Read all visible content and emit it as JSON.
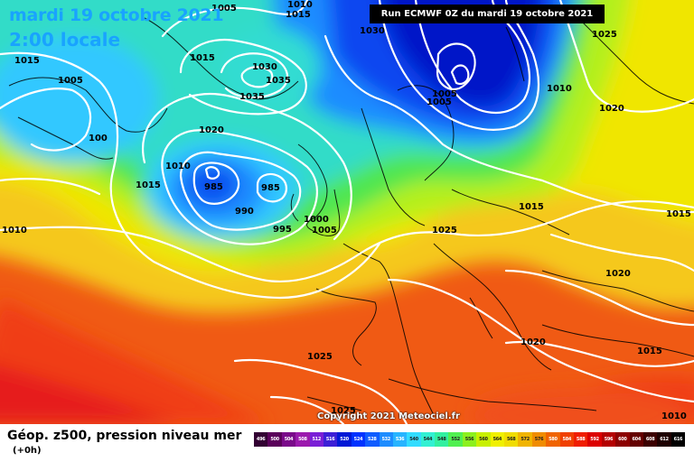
{
  "header": {
    "date_title": "mardi 19 octobre 2021",
    "time_title": "2:00 locale",
    "run_banner": "Run ECMWF 0Z du mardi 19 octobre 2021"
  },
  "map": {
    "copyright": "Copyright 2021 Meteociel.fr",
    "isobar_labels": [
      {
        "id": "iso-1005-nw",
        "text": "1005"
      },
      {
        "id": "iso-1015-w",
        "text": "1015"
      },
      {
        "id": "iso-1005-w",
        "text": "1005"
      },
      {
        "id": "iso-100-w",
        "text": "100"
      },
      {
        "id": "iso-1010-w",
        "text": "1010"
      },
      {
        "id": "iso-1015-mid",
        "text": "1015"
      },
      {
        "id": "iso-1015-n",
        "text": "1015"
      },
      {
        "id": "iso-1030-n",
        "text": "1030"
      },
      {
        "id": "iso-1035-n1",
        "text": "1035"
      },
      {
        "id": "iso-1035-n2",
        "text": "1035"
      },
      {
        "id": "iso-1020-mid",
        "text": "1020"
      },
      {
        "id": "iso-1010-mid",
        "text": "1010"
      },
      {
        "id": "iso-985-a",
        "text": "985"
      },
      {
        "id": "iso-985-b",
        "text": "985"
      },
      {
        "id": "iso-990",
        "text": "990"
      },
      {
        "id": "iso-995",
        "text": "995"
      },
      {
        "id": "iso-1000",
        "text": "1000"
      },
      {
        "id": "iso-1005-uk",
        "text": "1005"
      },
      {
        "id": "iso-1010-top",
        "text": "1010"
      },
      {
        "id": "iso-1015-top",
        "text": "1015"
      },
      {
        "id": "iso-1030-top",
        "text": "1030"
      },
      {
        "id": "iso-1005-scan",
        "text": "1005"
      },
      {
        "id": "iso-1005-scan2",
        "text": "1005"
      },
      {
        "id": "iso-1010-e",
        "text": "1010"
      },
      {
        "id": "iso-1025-ne",
        "text": "1025"
      },
      {
        "id": "iso-1020-e",
        "text": "1020"
      },
      {
        "id": "iso-1015-balt",
        "text": "1015"
      },
      {
        "id": "iso-1015-far-e",
        "text": "1015"
      },
      {
        "id": "iso-1025-cen",
        "text": "1025"
      },
      {
        "id": "iso-1020-se",
        "text": "1020"
      },
      {
        "id": "iso-1020-bal",
        "text": "1020"
      },
      {
        "id": "iso-1015-se",
        "text": "1015"
      },
      {
        "id": "iso-1025-sw",
        "text": "1025"
      },
      {
        "id": "iso-1025-s",
        "text": "1025"
      },
      {
        "id": "iso-1010-se",
        "text": "1010"
      }
    ]
  },
  "footer": {
    "param_title": "Géop. z500, pression niveau mer",
    "lead_time": "(+0h)"
  },
  "legend": {
    "values": [
      "496",
      "500",
      "504",
      "508",
      "512",
      "516",
      "520",
      "524",
      "528",
      "532",
      "536",
      "540",
      "544",
      "548",
      "552",
      "556",
      "560",
      "564",
      "568",
      "572",
      "576",
      "580",
      "584",
      "588",
      "592",
      "596",
      "600",
      "604",
      "608",
      "612",
      "616"
    ],
    "colors": [
      "#320032",
      "#5a005a",
      "#7a0a8a",
      "#9b19ad",
      "#7a1fd6",
      "#3c1fd6",
      "#0019d6",
      "#0032ff",
      "#0f5cff",
      "#1e8cff",
      "#28b4ff",
      "#32dcff",
      "#32f0d2",
      "#32f0a0",
      "#50f050",
      "#8cf01e",
      "#c8f000",
      "#f0f000",
      "#f0dc00",
      "#f0b400",
      "#f08c00",
      "#f06400",
      "#f04000",
      "#f01e00",
      "#dc0000",
      "#b40000",
      "#8c0000",
      "#640000",
      "#3c0000",
      "#1e0000",
      "#000000"
    ]
  }
}
